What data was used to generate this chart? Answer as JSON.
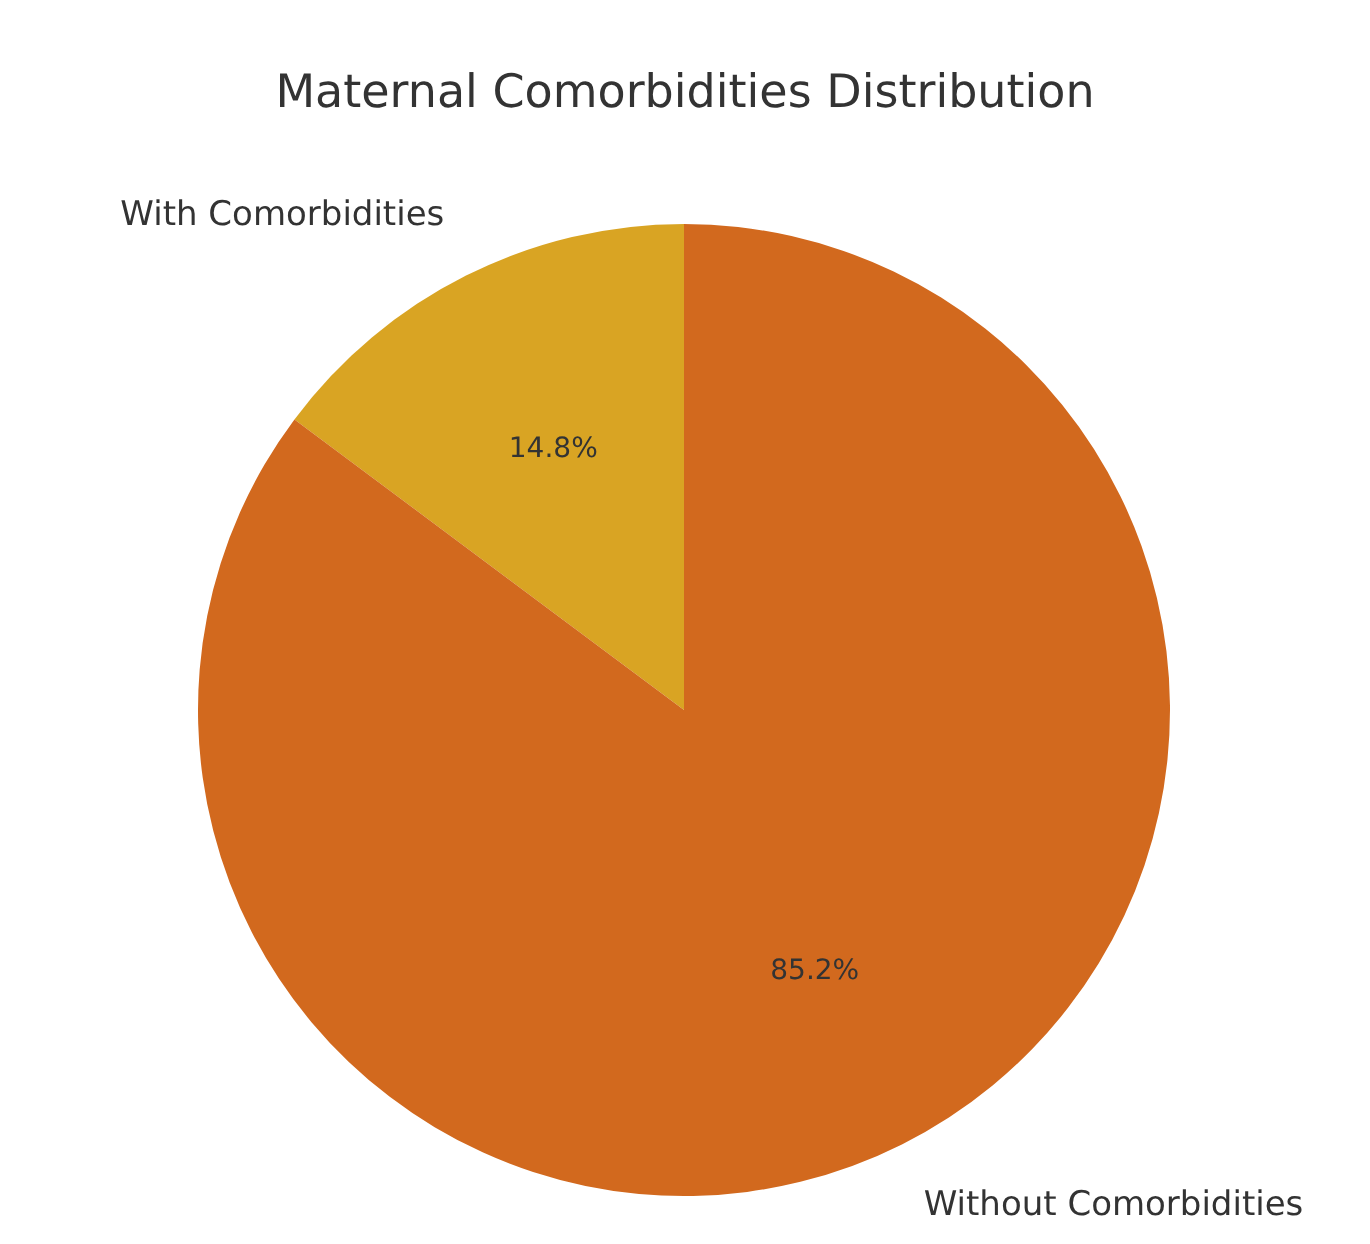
{
  "chart_data": {
    "type": "pie",
    "title": "Maternal Comorbidities Distribution",
    "categories": [
      "With Comorbidities",
      "Without Comorbidities"
    ],
    "values": [
      14.8,
      85.2
    ],
    "colors": [
      "#d9a423",
      "#d2691e"
    ],
    "value_labels": [
      "14.8%",
      "85.2%"
    ],
    "legend": false
  }
}
